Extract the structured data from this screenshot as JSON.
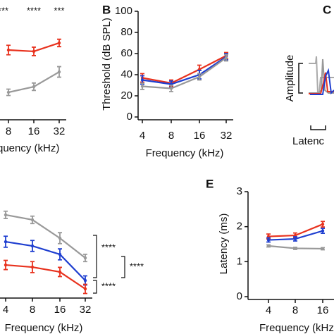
{
  "chart_data": [
    {
      "type": "line",
      "xlabel": "quency (kHz)",
      "categories": [
        "8",
        "16",
        "32"
      ],
      "ylim": [
        0,
        10
      ],
      "annotations": [
        "****",
        "****",
        "***"
      ],
      "series": [
        {
          "color": "#e8321e",
          "values": [
            6.6,
            6.47,
            7.27
          ],
          "errors": [
            0.45,
            0.4,
            0.35
          ]
        },
        {
          "color": "#999999",
          "values": [
            2.6,
            3.13,
            4.53
          ],
          "errors": [
            0.3,
            0.35,
            0.5
          ]
        }
      ]
    },
    {
      "type": "line",
      "label": "B",
      "ylabel": "Threshold (dB SPL)",
      "xlabel": "Frequency (kHz)",
      "categories": [
        "4",
        "8",
        "16",
        "32"
      ],
      "ylim": [
        0,
        100
      ],
      "yticks": [
        0,
        20,
        40,
        60,
        80,
        100
      ],
      "series": [
        {
          "color": "#e8321e",
          "values": [
            37,
            32,
            45,
            58
          ],
          "errors": [
            4,
            3,
            4,
            3
          ]
        },
        {
          "color": "#1f3fd0",
          "values": [
            35,
            31,
            40,
            57
          ],
          "errors": [
            4,
            3,
            4,
            3
          ]
        },
        {
          "color": "#999999",
          "values": [
            29,
            27,
            38,
            56
          ],
          "errors": [
            3,
            3,
            3,
            3
          ]
        }
      ]
    },
    {
      "type": "diagram",
      "label": "C",
      "ylabel": "Amplitude",
      "xlabel": "Latenc"
    },
    {
      "type": "line",
      "xlabel": "Frequency (kHz)",
      "categories": [
        "4",
        "8",
        "16",
        "32"
      ],
      "ylim": [
        0,
        10
      ],
      "annotations": [
        "****",
        "****",
        "****"
      ],
      "series": [
        {
          "color": "#999999",
          "values": [
            8.85,
            8.31,
            6.31,
            4.15
          ],
          "errors": [
            0.4,
            0.4,
            0.6,
            0.4
          ]
        },
        {
          "color": "#1f3fd0",
          "values": [
            5.92,
            5.46,
            4.54,
            1.69
          ],
          "errors": [
            0.6,
            0.6,
            0.6,
            0.5
          ]
        },
        {
          "color": "#e8321e",
          "values": [
            3.38,
            3.15,
            2.62,
            0.77
          ],
          "errors": [
            0.5,
            0.6,
            0.5,
            0.5
          ]
        }
      ]
    },
    {
      "type": "line",
      "label": "E",
      "ylabel": "Latency (ms)",
      "xlabel": "Frequency (kHz",
      "categories": [
        "4",
        "8",
        "16"
      ],
      "ylim": [
        0,
        3
      ],
      "yticks": [
        0,
        1,
        2,
        3
      ],
      "series": [
        {
          "color": "#e8321e",
          "values": [
            1.72,
            1.75,
            2.07
          ],
          "errors": [
            0.07,
            0.07,
            0.08
          ]
        },
        {
          "color": "#1f3fd0",
          "values": [
            1.62,
            1.65,
            1.88
          ],
          "errors": [
            0.06,
            0.06,
            0.07
          ]
        },
        {
          "color": "#999999",
          "values": [
            1.45,
            1.38,
            1.37
          ],
          "errors": [
            0.03,
            0.03,
            0.03
          ]
        }
      ]
    }
  ]
}
